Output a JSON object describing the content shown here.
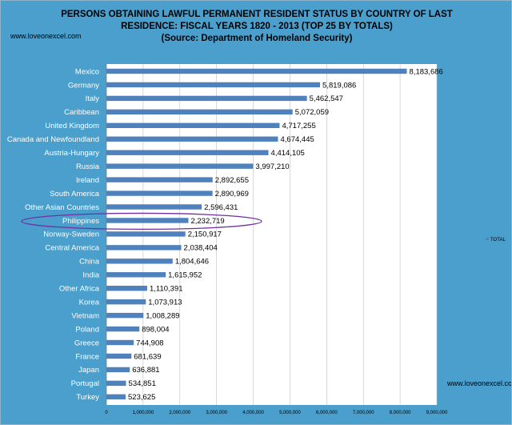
{
  "colors": {
    "background": "#4a9fcd",
    "plot_background": "#ffffff",
    "bar": "#4f81bd",
    "highlight": "#7030a0"
  },
  "site_label": "www.loveonexcel.com",
  "chart_data": {
    "type": "bar",
    "orientation": "horizontal",
    "title_lines": [
      "PERSONS OBTAINING LAWFUL PERMANENT RESIDENT STATUS BY COUNTRY OF LAST",
      "RESIDENCE: FISCAL YEARS 1820 - 2013 (TOP 25 BY TOTALS)",
      "(Source: Department of Homeland Security)"
    ],
    "categories": [
      "Mexico",
      "Germany",
      "Italy",
      "Caribbean",
      "United Kingdom",
      "Canada and Newfoundland",
      "Austria-Hungary",
      "Russia",
      "Ireland",
      "South America",
      "Other Asian Countries",
      "Philippines",
      "Norway-Sweden",
      "Central America",
      "China",
      "India",
      "Other Africa",
      "Korea",
      "Vietnam",
      "Poland",
      "Greece",
      "France",
      "Japan",
      "Portugal",
      "Turkey"
    ],
    "series": [
      {
        "name": "TOTAL",
        "values": [
          8183686,
          5819086,
          5462547,
          5072059,
          4717255,
          4674445,
          4414105,
          3997210,
          2892655,
          2890969,
          2596431,
          2232719,
          2150917,
          2038404,
          1804646,
          1615952,
          1110391,
          1073913,
          1008289,
          898004,
          744908,
          681639,
          636881,
          534851,
          523625
        ]
      }
    ],
    "value_labels": [
      "8,183,686",
      "5,819,086",
      "5,462,547",
      "5,072,059",
      "4,717,255",
      "4,674,445",
      "4,414,105",
      "3,997,210",
      "2,892,655",
      "2,890,969",
      "2,596,431",
      "2,232,719",
      "2,150,917",
      "2,038,404",
      "1,804,646",
      "1,615,952",
      "1,110,391",
      "1,073,913",
      "1,008,289",
      "898,004",
      "744,908",
      "681,639",
      "636,881",
      "534,851",
      "523,625"
    ],
    "x_ticks": [
      0,
      1000000,
      2000000,
      3000000,
      4000000,
      5000000,
      6000000,
      7000000,
      8000000,
      9000000
    ],
    "x_tick_labels": [
      "0",
      "1,000,000",
      "2,000,000",
      "3,000,000",
      "4,000,000",
      "5,000,000",
      "6,000,000",
      "7,000,000",
      "8,000,000",
      "9,000,000"
    ],
    "xlim": [
      0,
      9000000
    ],
    "highlighted_category": "Philippines",
    "legend_position": "right",
    "grid": true
  }
}
